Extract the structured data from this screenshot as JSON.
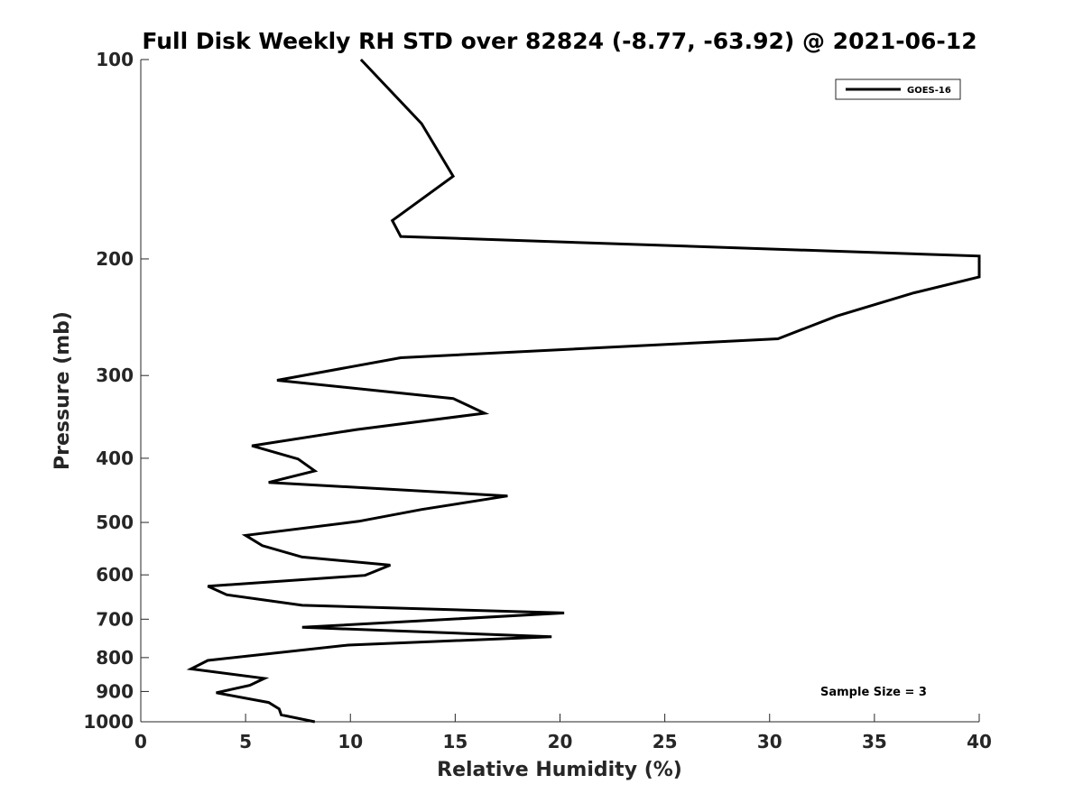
{
  "chart_data": {
    "type": "line",
    "title": "Full Disk Weekly RH STD over 82824 (-8.77, -63.92) @ 2021-06-12",
    "xlabel": "Relative Humidity (%)",
    "ylabel": "Pressure (mb)",
    "xlim": [
      0,
      40
    ],
    "ylim": [
      100,
      1000
    ],
    "yscale": "log",
    "y_reversed": true,
    "xticks": [
      0,
      5,
      10,
      15,
      20,
      25,
      30,
      35,
      40
    ],
    "yticks": [
      100,
      200,
      300,
      400,
      500,
      600,
      700,
      800,
      900,
      1000
    ],
    "grid": false,
    "legend": {
      "position": "top-right",
      "entries": [
        "GOES-16"
      ]
    },
    "annotation": "Sample Size = 3",
    "series": [
      {
        "name": "GOES-16",
        "color": "#000000",
        "points": [
          [
            10.5,
            100
          ],
          [
            13.4,
            125
          ],
          [
            14.9,
            150
          ],
          [
            12.0,
            175
          ],
          [
            12.4,
            185
          ],
          [
            40.0,
            198
          ],
          [
            40.0,
            213
          ],
          [
            36.9,
            225
          ],
          [
            33.2,
            244
          ],
          [
            30.4,
            264
          ],
          [
            12.4,
            282
          ],
          [
            6.5,
            305
          ],
          [
            14.9,
            325
          ],
          [
            16.4,
            342
          ],
          [
            10.3,
            362
          ],
          [
            5.3,
            383
          ],
          [
            7.5,
            401
          ],
          [
            8.3,
            418
          ],
          [
            6.1,
            435
          ],
          [
            17.5,
            456
          ],
          [
            13.4,
            478
          ],
          [
            10.4,
            498
          ],
          [
            5.0,
            523
          ],
          [
            5.8,
            542
          ],
          [
            7.7,
            564
          ],
          [
            11.9,
            580
          ],
          [
            10.7,
            601
          ],
          [
            3.2,
            624
          ],
          [
            4.1,
            643
          ],
          [
            7.7,
            667
          ],
          [
            20.2,
            685
          ],
          [
            7.7,
            720
          ],
          [
            19.6,
            744
          ],
          [
            9.9,
            766
          ],
          [
            3.2,
            808
          ],
          [
            2.4,
            832
          ],
          [
            5.9,
            860
          ],
          [
            5.2,
            881
          ],
          [
            3.6,
            904
          ],
          [
            6.1,
            935
          ],
          [
            6.6,
            956
          ],
          [
            6.7,
            976
          ],
          [
            8.3,
            1000
          ]
        ]
      }
    ]
  }
}
